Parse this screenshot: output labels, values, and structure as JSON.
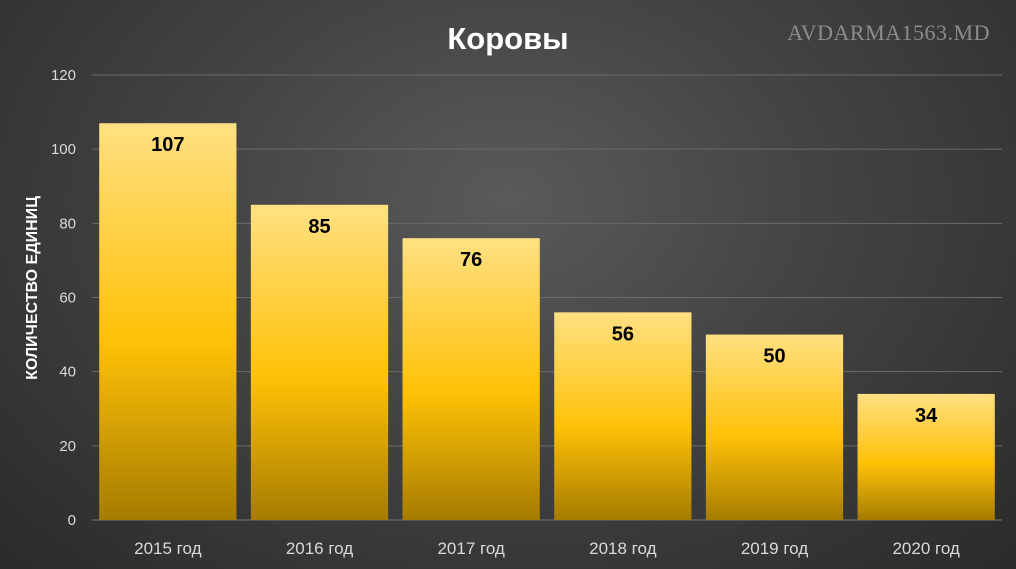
{
  "chart_data": {
    "type": "bar",
    "title": "Коровы",
    "ylabel": "КОЛИЧЕСТВО ЕДИНИЦ",
    "xlabel": "",
    "categories": [
      "2015 год",
      "2016 год",
      "2017 год",
      "2018 год",
      "2019 год",
      "2020 год"
    ],
    "values": [
      107,
      85,
      76,
      56,
      50,
      34
    ],
    "data_labels": [
      "107",
      "85",
      "76",
      "56",
      "50",
      "34"
    ],
    "ylim": [
      0,
      120
    ],
    "yticks": [
      0,
      20,
      40,
      60,
      80,
      100,
      120
    ],
    "grid": true,
    "legend": "none"
  },
  "watermark": "AVDARMA1563.MD",
  "colors": {
    "bar_top": "#ffe082",
    "bar_mid": "#ffc107",
    "bar_bottom": "#a67c00",
    "text": "#ffffff",
    "tick_text": "#d9d9d9",
    "grid": "#6a6a6a",
    "label": "#000000"
  }
}
